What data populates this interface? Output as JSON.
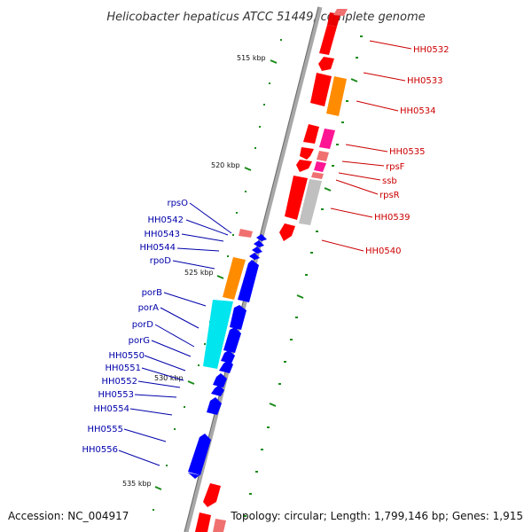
{
  "title": "Helicobacter hepaticus ATCC 51449, complete genome",
  "accession": "Accession: NC_004917",
  "summary": "Topology: circular; Length: 1,799,146 bp; Genes: 1,915",
  "colors": {
    "backbone": "#9a9a9a",
    "forward_label": "#cc0000",
    "reverse_label": "#0000aa",
    "tick": "#1a8a1a"
  },
  "ticks": [
    "515 kbp",
    "520 kbp",
    "525 kbp",
    "530 kbp",
    "535 kbp"
  ],
  "forward_labels": [
    "HH0532",
    "HH0533",
    "HH0534",
    "HH0535",
    "rpsF",
    "ssb",
    "rpsR",
    "HH0539",
    "HH0540"
  ],
  "reverse_labels": [
    "rpsO",
    "HH0542",
    "HH0543",
    "HH0544",
    "rpoD",
    "porB",
    "porA",
    "porD",
    "porG",
    "HH0550",
    "HH0551",
    "HH0552",
    "HH0553",
    "HH0554",
    "HH0555",
    "HH0556"
  ]
}
